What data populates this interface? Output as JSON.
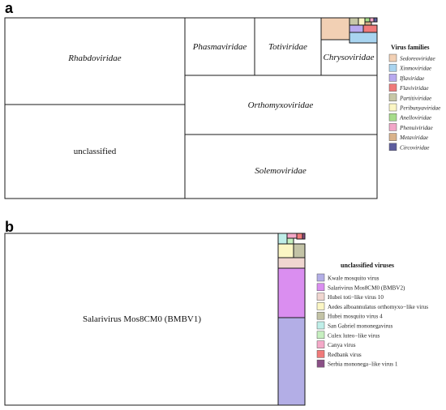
{
  "panels": [
    {
      "label": "a"
    },
    {
      "label": "b"
    }
  ],
  "chart_data": [
    {
      "type": "treemap",
      "panel": "a",
      "legend_title": "Virus families",
      "legend_placement": "right",
      "legend": [
        {
          "name": "Sedoreoviridae",
          "color": "#f2d0b4"
        },
        {
          "name": "Xinmoviridae",
          "color": "#a9d4f0"
        },
        {
          "name": "Iflaviridae",
          "color": "#b8a9ef"
        },
        {
          "name": "Flaviviridae",
          "color": "#f07a7a"
        },
        {
          "name": "Partitiviridae",
          "color": "#c7c7a6"
        },
        {
          "name": "Peribunyaviridae",
          "color": "#fbf6c4"
        },
        {
          "name": "Anelloviridae",
          "color": "#a6dc8a"
        },
        {
          "name": "Phenuiviridae",
          "color": "#f2a6c8"
        },
        {
          "name": "Metaviridae",
          "color": "#d9b28a"
        },
        {
          "name": "Circoviridae",
          "color": "#5c5c9e"
        }
      ],
      "cells": [
        {
          "name": "Rhabdoviridae",
          "italic": true,
          "label": "Rhabdoviridae",
          "color": "#ffffff"
        },
        {
          "name": "unclassified",
          "italic": false,
          "label": "unclassified",
          "color": "#ffffff"
        },
        {
          "name": "Phasmaviridae",
          "italic": true,
          "label": "Phasmaviridae",
          "color": "#ffffff"
        },
        {
          "name": "Totiviridae",
          "italic": true,
          "label": "Totiviridae",
          "color": "#ffffff"
        },
        {
          "name": "Chrysoviridae",
          "italic": true,
          "label": "Chrysoviridae",
          "color": "#ffffff"
        },
        {
          "name": "Orthomyxoviridae",
          "italic": true,
          "label": "Orthomyxoviridae",
          "color": "#ffffff"
        },
        {
          "name": "Solemoviridae",
          "italic": true,
          "label": "Solemoviridae",
          "color": "#ffffff"
        },
        {
          "name": "Sedoreoviridae",
          "label": "",
          "color": "#f2d0b4"
        },
        {
          "name": "Xinmoviridae",
          "label": "",
          "color": "#a9d4f0"
        },
        {
          "name": "Iflaviridae",
          "label": "",
          "color": "#b8a9ef"
        },
        {
          "name": "Flaviviridae",
          "label": "",
          "color": "#f07a7a"
        },
        {
          "name": "Partitiviridae",
          "label": "",
          "color": "#c7c7a6"
        },
        {
          "name": "Peribunyaviridae",
          "label": "",
          "color": "#fbf6c4"
        },
        {
          "name": "Anelloviridae",
          "label": "",
          "color": "#a6dc8a"
        },
        {
          "name": "Phenuiviridae",
          "label": "",
          "color": "#f2a6c8"
        },
        {
          "name": "Metaviridae",
          "label": "",
          "color": "#d9b28a"
        },
        {
          "name": "Circoviridae",
          "label": "",
          "color": "#5c5c9e"
        }
      ]
    },
    {
      "type": "treemap",
      "panel": "b",
      "legend_title": "unclassified viruses",
      "legend_placement": "right",
      "legend": [
        {
          "name": "Kwale mosquito virus",
          "color": "#b3aee6"
        },
        {
          "name": "Salarivirus Mos8CM0 (BMBV2)",
          "color": "#da8ef0"
        },
        {
          "name": "Hubei toti−like virus 10",
          "color": "#f0d6d0"
        },
        {
          "name": "Aedes alboannulatus orthomyxo−like virus",
          "color": "#fbf6c4"
        },
        {
          "name": "Hubei mosquito virus 4",
          "color": "#c3c3a6"
        },
        {
          "name": "San Gabriel mononegavirus",
          "color": "#bfeee8"
        },
        {
          "name": "Culex luteo−like virus",
          "color": "#c6efc0"
        },
        {
          "name": "Canya virus",
          "color": "#f4a9c8"
        },
        {
          "name": "Redbank virus",
          "color": "#f07a7a"
        },
        {
          "name": "Serbia mononega−like virus 1",
          "color": "#8a4f86"
        }
      ],
      "cells": [
        {
          "name": "Salarivirus Mos8CM0 (BMBV1)",
          "label": "Salarivirus Mos8CM0 (BMBV1)",
          "color": "#ffffff"
        },
        {
          "name": "Kwale mosquito virus",
          "label": "",
          "color": "#b3aee6"
        },
        {
          "name": "Salarivirus Mos8CM0 (BMBV2)",
          "label": "",
          "color": "#da8ef0"
        },
        {
          "name": "Hubei toti−like virus 10",
          "label": "",
          "color": "#f0d6d0"
        },
        {
          "name": "Aedes alboannulatus orthomyxo−like virus",
          "label": "",
          "color": "#fbf6c4"
        },
        {
          "name": "Hubei mosquito virus 4",
          "label": "",
          "color": "#c3c3a6"
        },
        {
          "name": "San Gabriel mononegavirus",
          "label": "",
          "color": "#bfeee8"
        },
        {
          "name": "Culex luteo−like virus",
          "label": "",
          "color": "#c6efc0"
        },
        {
          "name": "Canya virus",
          "label": "",
          "color": "#f4a9c8"
        },
        {
          "name": "Redbank virus",
          "label": "",
          "color": "#f07a7a"
        },
        {
          "name": "Serbia mononega−like virus 1",
          "label": "",
          "color": "#8a4f86"
        }
      ]
    }
  ]
}
